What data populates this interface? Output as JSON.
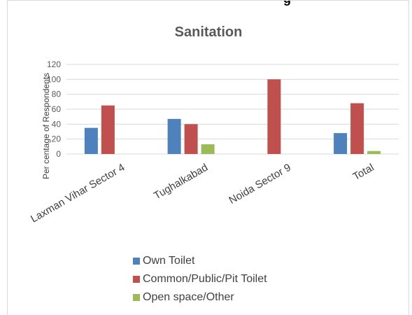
{
  "page": {
    "header_fragment": "g"
  },
  "chart_data": {
    "type": "bar",
    "title": "Sanitation",
    "xlabel": "",
    "ylabel": "Per centage of Respondents",
    "ylim": [
      0,
      120
    ],
    "yticks": [
      "0",
      "20",
      "40",
      "60",
      "80",
      "100",
      "120"
    ],
    "grid": true,
    "legend_position": "bottom",
    "categories": [
      "Laxman Vihar Sector 4",
      "Tughalkabad",
      "Noida Sector 9",
      "Total"
    ],
    "series": [
      {
        "name": "Own Toilet",
        "color": "#4f81bd",
        "values": [
          35,
          47,
          0,
          28
        ]
      },
      {
        "name": "Common/Public/Pit Toilet",
        "color": "#c0504d",
        "values": [
          65,
          40,
          100,
          68
        ]
      },
      {
        "name": "Open space/Other",
        "color": "#9bbb59",
        "values": [
          0,
          13,
          0,
          4
        ]
      }
    ]
  }
}
